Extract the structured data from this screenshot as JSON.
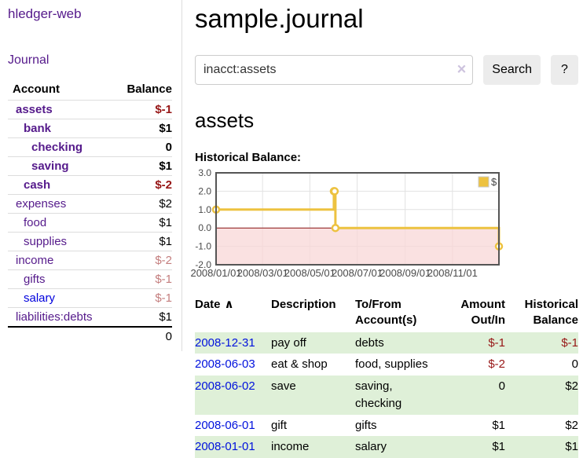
{
  "app": {
    "brand": "hledger-web",
    "nav_journal": "Journal"
  },
  "sidebar": {
    "headers": {
      "account": "Account",
      "balance": "Balance"
    },
    "accounts": [
      {
        "name": "assets",
        "depth": 1,
        "balance": "$-1",
        "bold": true,
        "negative": "dark"
      },
      {
        "name": "bank",
        "depth": 2,
        "balance": "$1",
        "bold": true,
        "negative": null
      },
      {
        "name": "checking",
        "depth": 3,
        "balance": "0",
        "bold": true,
        "negative": null
      },
      {
        "name": "saving",
        "depth": 3,
        "balance": "$1",
        "bold": true,
        "negative": null
      },
      {
        "name": "cash",
        "depth": 2,
        "balance": "$-2",
        "bold": true,
        "negative": "dark"
      },
      {
        "name": "expenses",
        "depth": 1,
        "balance": "$2",
        "bold": false,
        "negative": null
      },
      {
        "name": "food",
        "depth": 2,
        "balance": "$1",
        "bold": false,
        "negative": null
      },
      {
        "name": "supplies",
        "depth": 2,
        "balance": "$1",
        "bold": false,
        "negative": null
      },
      {
        "name": "income",
        "depth": 1,
        "balance": "$-2",
        "bold": false,
        "negative": "light"
      },
      {
        "name": "gifts",
        "depth": 2,
        "balance": "$-1",
        "bold": false,
        "negative": "light"
      },
      {
        "name": "salary",
        "depth": 2,
        "balance": "$-1",
        "bold": false,
        "negative": "light",
        "unvisited": true
      },
      {
        "name": "liabilities:debts",
        "depth": 1,
        "balance": "$1",
        "bold": false,
        "negative": null
      }
    ],
    "total": "0"
  },
  "header": {
    "title": "sample.journal"
  },
  "search": {
    "value": "inacct:assets",
    "clear_icon": "×",
    "button_label": "Search",
    "help_label": "?"
  },
  "account_page": {
    "heading": "assets",
    "chart_label": "Historical Balance:"
  },
  "chart_data": {
    "type": "line",
    "step": true,
    "title": "Historical Balance:",
    "series": [
      {
        "name": "$",
        "color": "#edc240",
        "points": [
          [
            "2008-01-01",
            1
          ],
          [
            "2008-06-01",
            2
          ],
          [
            "2008-06-02",
            2
          ],
          [
            "2008-06-03",
            0
          ],
          [
            "2008-12-31",
            -1
          ]
        ]
      }
    ],
    "x_ticks": [
      "2008/01/01",
      "2008/03/01",
      "2008/05/01",
      "2008/07/01",
      "2008/09/01",
      "2008/11/01"
    ],
    "y_ticks": [
      3.0,
      2.0,
      1.0,
      0.0,
      -1.0,
      -2.0
    ],
    "ylim": [
      -2,
      3
    ],
    "grid": true,
    "legend_position": "top-right",
    "negative_region_color": "#f8d7d7",
    "zero_line_color": "#8b1414",
    "border_color": "#555555",
    "gridline_color": "#e2e2e2",
    "tick_label_color": "#4a4a4a"
  },
  "register": {
    "headers": {
      "date": "Date",
      "sort_icon": "∧",
      "description": "Description",
      "accounts": "To/From Account(s)",
      "amount": "Amount Out/In",
      "balance": "Historical Balance"
    },
    "rows": [
      {
        "date": "2008-12-31",
        "description": "pay off",
        "accounts": "debts",
        "amount": "$-1",
        "balance": "$-1"
      },
      {
        "date": "2008-06-03",
        "description": "eat & shop",
        "accounts": "food, supplies",
        "amount": "$-2",
        "balance": "0"
      },
      {
        "date": "2008-06-02",
        "description": "save",
        "accounts": "saving, checking",
        "amount": "0",
        "balance": "$2"
      },
      {
        "date": "2008-06-01",
        "description": "gift",
        "accounts": "gifts",
        "amount": "$1",
        "balance": "$2"
      },
      {
        "date": "2008-01-01",
        "description": "income",
        "accounts": "salary",
        "amount": "$1",
        "balance": "$1"
      }
    ]
  },
  "colors": {
    "link_purple": "#551a8b",
    "link_blue": "#0000dd",
    "link_blue_bright": "#0011dd",
    "negative_dark": "#971616",
    "negative_light": "#c47e7e",
    "row_green": "#dff0d8",
    "chart_line": "#edc240"
  }
}
